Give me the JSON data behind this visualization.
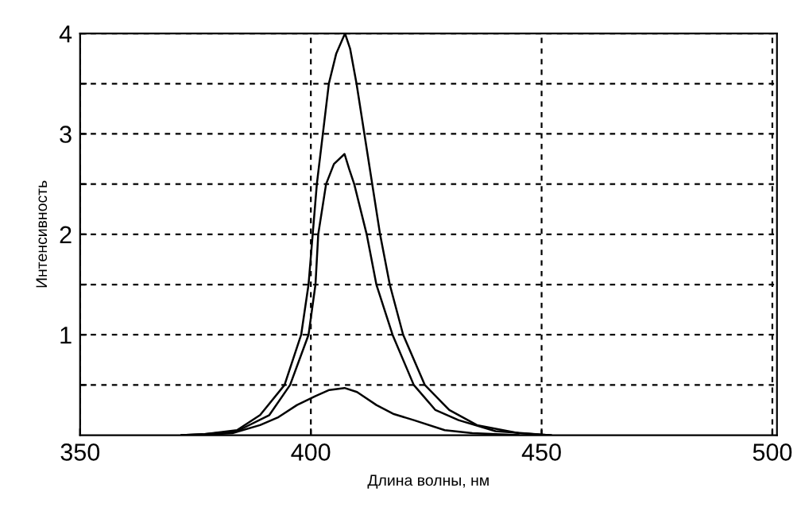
{
  "chart_data": {
    "type": "line",
    "xlabel": "Длина волны, нм",
    "ylabel": "Интенсивность",
    "xlim": [
      350,
      501
    ],
    "ylim": [
      0,
      4
    ],
    "xticks": [
      350,
      400,
      450,
      500
    ],
    "yticks": [
      {
        "value": 0.5,
        "label": null
      },
      1,
      {
        "value": 1.5,
        "label": null
      },
      2,
      {
        "value": 2.5,
        "label": null
      },
      3,
      {
        "value": 3.5,
        "label": null
      },
      4
    ],
    "grid": true,
    "marker": "none",
    "line_style": "solid",
    "series": [
      {
        "color": "#000000",
        "x": [
          372,
          377,
          384,
          389,
          394.3,
          397.9,
          399.5,
          401.3,
          403.9,
          405.5,
          407.4,
          408.5,
          409.9,
          411.6,
          415,
          417.1,
          420,
          424.7,
          430,
          436,
          445,
          452
        ],
        "values": [
          0,
          0.01,
          0.05,
          0.2,
          0.5,
          1.0,
          1.5,
          2.5,
          3.5,
          3.8,
          4.0,
          3.85,
          3.5,
          3.0,
          2.0,
          1.5,
          1.0,
          0.5,
          0.25,
          0.1,
          0.02,
          0
        ]
      },
      {
        "color": "#000000",
        "x": [
          372,
          377,
          384,
          391,
          395.5,
          399.5,
          401,
          401.6,
          403.3,
          405,
          407.3,
          408.3,
          409.4,
          412.1,
          414.2,
          417.7,
          422.3,
          427,
          432,
          440,
          452
        ],
        "values": [
          0,
          0.01,
          0.04,
          0.2,
          0.5,
          1.0,
          1.5,
          2.0,
          2.5,
          2.7,
          2.8,
          2.65,
          2.5,
          2.0,
          1.5,
          1.0,
          0.5,
          0.25,
          0.15,
          0.04,
          0
        ]
      },
      {
        "color": "#000000",
        "x": [
          375,
          383,
          389,
          393,
          397,
          401,
          404,
          407.3,
          410,
          414.2,
          418,
          422.3,
          429,
          435,
          445
        ],
        "values": [
          0,
          0.02,
          0.1,
          0.18,
          0.3,
          0.39,
          0.45,
          0.47,
          0.43,
          0.3,
          0.21,
          0.15,
          0.05,
          0.02,
          0
        ]
      }
    ]
  }
}
